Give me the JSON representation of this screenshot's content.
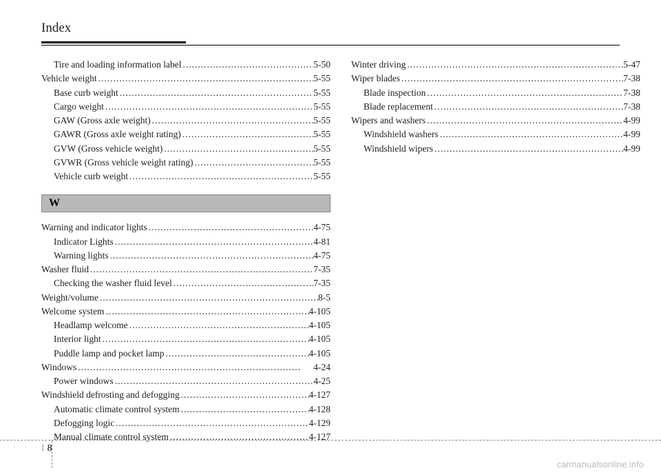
{
  "header": "Index",
  "section_w_label": "W",
  "footer_letter": "I",
  "footer_page": "8",
  "watermark": "carmanualsonline.info",
  "left_top": [
    {
      "label": "Tire and loading information label",
      "page": "5-50",
      "indent": true
    },
    {
      "label": "Vehicle weight",
      "page": "5-55",
      "indent": false
    },
    {
      "label": "Base curb weight",
      "page": "5-55",
      "indent": true
    },
    {
      "label": "Cargo weight",
      "page": "5-55",
      "indent": true
    },
    {
      "label": "GAW (Gross axle weight)",
      "page": "5-55",
      "indent": true
    },
    {
      "label": "GAWR (Gross axle weight rating)",
      "page": "5-55",
      "indent": true
    },
    {
      "label": "GVW (Gross vehicle weight)",
      "page": "5-55",
      "indent": true
    },
    {
      "label": "GVWR (Gross vehicle weight rating)",
      "page": "5-55",
      "indent": true
    },
    {
      "label": "Vehicle curb weight",
      "page": "5-55",
      "indent": true
    }
  ],
  "left_bottom": [
    {
      "label": "Warning and indicator lights",
      "page": "4-75",
      "indent": false
    },
    {
      "label": "Indicator Lights",
      "page": "4-81",
      "indent": true
    },
    {
      "label": "Warning lights",
      "page": "4-75",
      "indent": true
    },
    {
      "label": "Washer fluid",
      "page": "7-35",
      "indent": false
    },
    {
      "label": "Checking the washer fluid level",
      "page": "7-35",
      "indent": true
    },
    {
      "label": "Weight/volume",
      "page": "8-5",
      "indent": false
    },
    {
      "label": "Welcome system",
      "page": "4-105",
      "indent": false
    },
    {
      "label": "Headlamp welcome",
      "page": "4-105",
      "indent": true
    },
    {
      "label": "Interior light",
      "page": "4-105",
      "indent": true
    },
    {
      "label": "Puddle lamp and pocket lamp",
      "page": "4-105",
      "indent": true
    },
    {
      "label": "Windows",
      "page": "4-24",
      "indent": false
    },
    {
      "label": "Power windows",
      "page": "4-25",
      "indent": true
    },
    {
      "label": "Windshield defrosting and defogging",
      "page": "4-127",
      "indent": false
    },
    {
      "label": "Automatic climate control system",
      "page": "4-128",
      "indent": true
    },
    {
      "label": "Defogging logic",
      "page": "4-129",
      "indent": true
    },
    {
      "label": "Manual climate control system",
      "page": "4-127",
      "indent": true
    }
  ],
  "right": [
    {
      "label": "Winter driving",
      "page": "5-47",
      "indent": false
    },
    {
      "label": "Wiper blades",
      "page": "7-38",
      "indent": false
    },
    {
      "label": "Blade inspection",
      "page": "7-38",
      "indent": true
    },
    {
      "label": "Blade replacement",
      "page": "7-38",
      "indent": true
    },
    {
      "label": "Wipers and washers",
      "page": "4-99",
      "indent": false
    },
    {
      "label": "Windshield washers",
      "page": "4-99",
      "indent": true
    },
    {
      "label": "Windshield wipers",
      "page": "4-99",
      "indent": true
    }
  ]
}
